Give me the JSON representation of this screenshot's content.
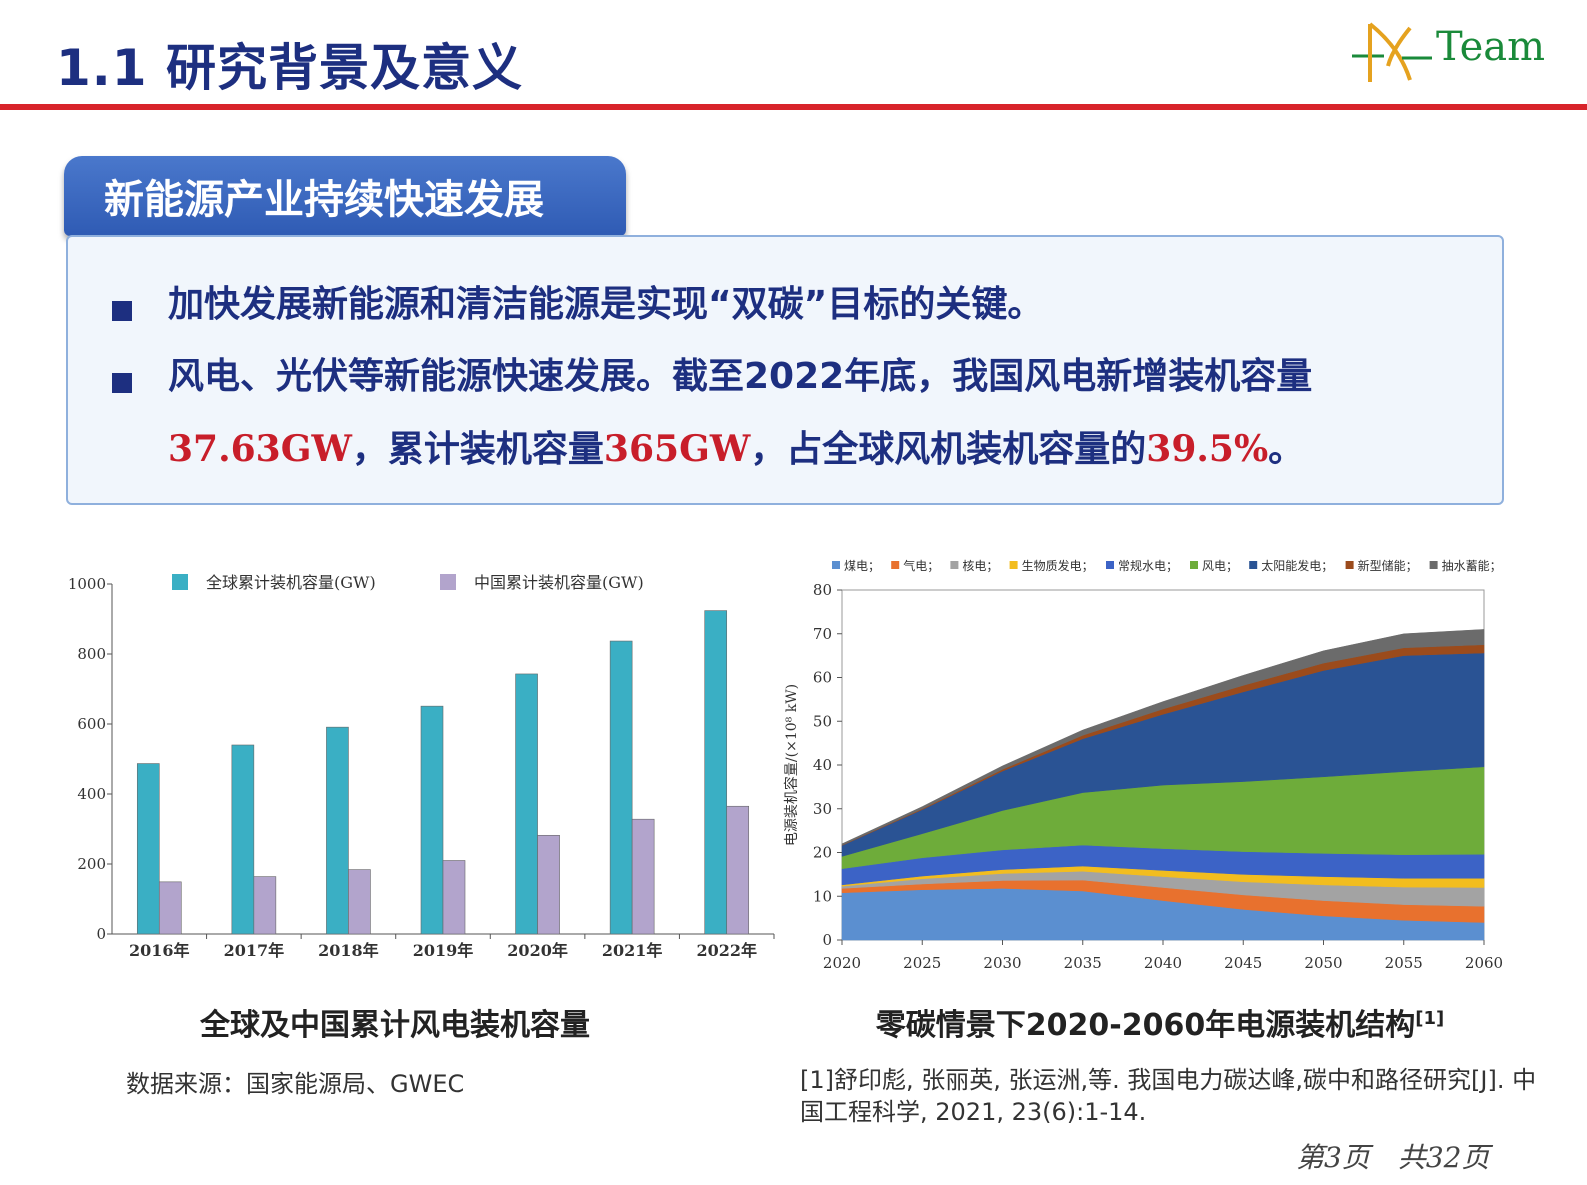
{
  "slide": {
    "title": "1.1 研究背景及意义",
    "logo_text": "Team",
    "section_label": "新能源产业持续快速发展",
    "bullets": {
      "b1": "加快发展新能源和清洁能源是实现“双碳”目标的关键。",
      "b2_part1": "风电、光伏等新能源快速发展。截至2022年底，我国风电新增装机容量",
      "b2_val1": "37.63GW",
      "b2_part2": "，累计装机容量",
      "b2_val2": "365GW",
      "b2_part3": "，占全球风机装机容量的",
      "b2_val3": "39.5%",
      "b2_part4": "。"
    },
    "caption_left": "全球及中国累计风电装机容量",
    "caption_right": "零碳情景下2020-2060年电源装机结构",
    "caption_right_sup": "[1]",
    "source_left": "数据来源：国家能源局、GWEC",
    "reference": "[1]舒印彪, 张丽英, 张运洲,等. 我国电力碳达峰,碳中和路径研究[J]. 中国工程科学, 2021, 23(6):1-14.",
    "page_number": "第3页　共32页"
  },
  "colors": {
    "title_blue": "#1d2f80",
    "rule_red": "#d8232a",
    "value_red": "#c81e2a",
    "global_bar": "#3aafc4",
    "china_bar": "#b2a4cc"
  },
  "chart_data": [
    {
      "type": "bar",
      "categories": [
        "2016年",
        "2017年",
        "2018年",
        "2019年",
        "2020年",
        "2021年",
        "2022年"
      ],
      "series": [
        {
          "name": "全球累计装机容量(GW)",
          "values": [
            487,
            540,
            591,
            651,
            743,
            837,
            924
          ]
        },
        {
          "name": "中国累计装机容量(GW)",
          "values": [
            149,
            164,
            184,
            210,
            282,
            328,
            365
          ]
        }
      ],
      "ylim": [
        0,
        1000
      ],
      "yticks": [
        0,
        200,
        400,
        600,
        800,
        1000
      ],
      "legend": "top",
      "grid": false
    },
    {
      "type": "area",
      "stacked": true,
      "x": [
        2020,
        2025,
        2030,
        2035,
        2040,
        2045,
        2050,
        2055,
        2060
      ],
      "series": [
        {
          "name": "煤电",
          "values": [
            10.8,
            11.5,
            11.8,
            11.2,
            9.0,
            7.0,
            5.5,
            4.5,
            4.0
          ]
        },
        {
          "name": "气电",
          "values": [
            1.0,
            1.3,
            1.8,
            2.5,
            3.0,
            3.3,
            3.5,
            3.6,
            3.7
          ]
        },
        {
          "name": "核电",
          "values": [
            0.5,
            1.2,
            1.6,
            2.0,
            2.5,
            3.0,
            3.6,
            4.0,
            4.3
          ]
        },
        {
          "name": "生物质发电",
          "values": [
            0.3,
            0.6,
            0.9,
            1.2,
            1.4,
            1.7,
            1.9,
            2.0,
            2.1
          ]
        },
        {
          "name": "常规水电",
          "values": [
            3.7,
            4.2,
            4.5,
            4.8,
            5.0,
            5.2,
            5.3,
            5.4,
            5.5
          ]
        },
        {
          "name": "风电",
          "values": [
            2.8,
            5.5,
            9.0,
            12.0,
            14.5,
            16.0,
            17.5,
            19.0,
            20.0
          ]
        },
        {
          "name": "太阳能发电",
          "values": [
            2.5,
            5.5,
            9.0,
            12.3,
            16.2,
            20.5,
            24.3,
            26.5,
            26.0
          ]
        },
        {
          "name": "新型储能",
          "values": [
            0.1,
            0.2,
            0.4,
            0.8,
            1.2,
            1.5,
            1.7,
            1.8,
            1.9
          ]
        },
        {
          "name": "抽水蓄能",
          "values": [
            0.3,
            0.5,
            0.8,
            1.2,
            1.7,
            2.3,
            2.8,
            3.2,
            3.5
          ]
        }
      ],
      "ylabel": "电源装机容量/(×10⁸ kW)",
      "ylim": [
        0,
        80
      ],
      "yticks": [
        0,
        10,
        20,
        30,
        40,
        50,
        60,
        70,
        80
      ],
      "legend": "top",
      "grid": false,
      "colors": [
        "#5b8fd0",
        "#e8712e",
        "#a3a3a3",
        "#f2bd1f",
        "#3c63c6",
        "#6eac3a",
        "#2a5394",
        "#9b4b1c",
        "#6b6b6b"
      ]
    }
  ]
}
